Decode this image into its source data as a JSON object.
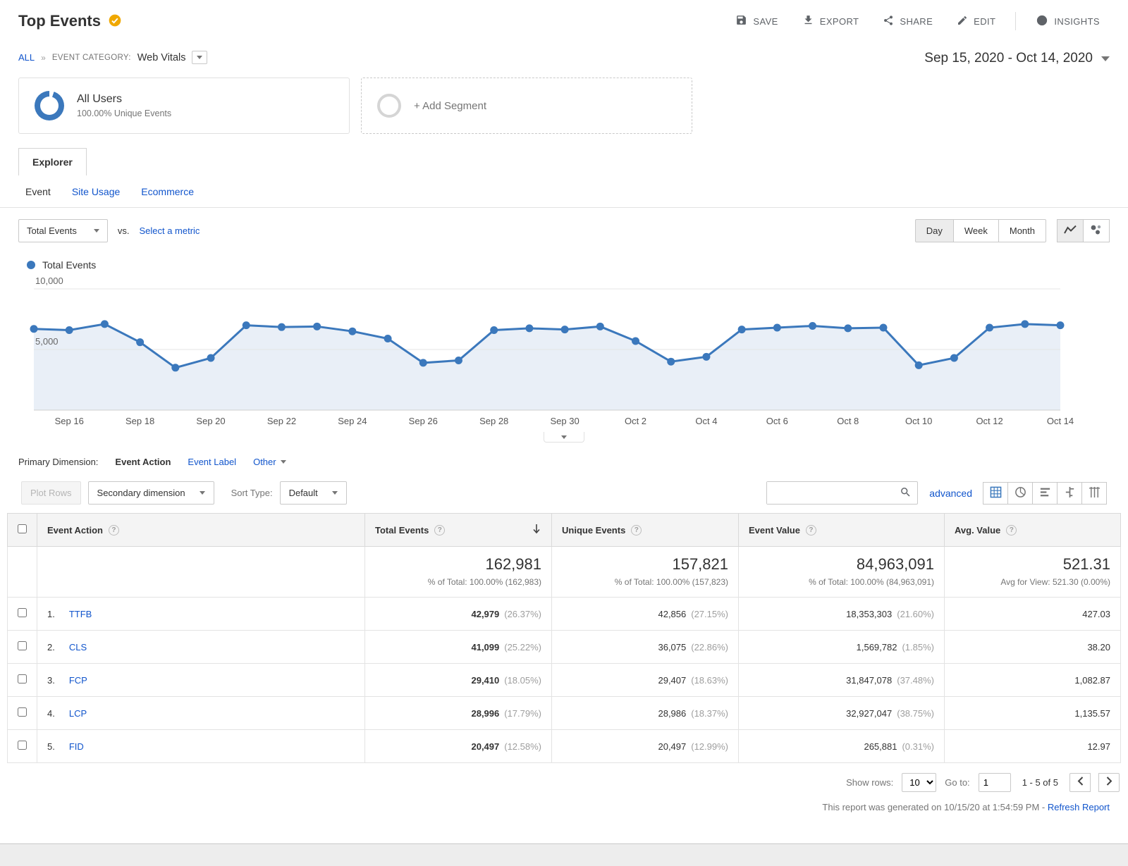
{
  "colors": {
    "accent_blue": "#3b78bc",
    "link_blue": "#1155cc",
    "badge_gold": "#f0a800"
  },
  "page": {
    "title": "Top Events"
  },
  "header": {
    "save": "SAVE",
    "export": "EXPORT",
    "share": "SHARE",
    "edit": "EDIT",
    "insights": "INSIGHTS"
  },
  "breadcrumb": {
    "all": "ALL",
    "separator": "»",
    "category_label": "EVENT CATEGORY:",
    "category_value": "Web Vitals"
  },
  "date_range": {
    "label": "Sep 15, 2020 - Oct 14, 2020"
  },
  "segments": {
    "all_users_title": "All Users",
    "all_users_subtitle": "100.00% Unique Events",
    "add_segment": "+ Add Segment"
  },
  "explorer": {
    "tab": "Explorer",
    "subtabs": [
      "Event",
      "Site Usage",
      "Ecommerce"
    ]
  },
  "metric_bar": {
    "metric": "Total Events",
    "vs": "vs.",
    "select_metric": "Select a metric",
    "granularity": [
      "Day",
      "Week",
      "Month"
    ],
    "active_granularity": "Day"
  },
  "legend": {
    "series": "Total Events"
  },
  "chart_data": {
    "type": "line",
    "title": "Total Events by day",
    "x": [
      "Sep 15",
      "Sep 16",
      "Sep 17",
      "Sep 18",
      "Sep 19",
      "Sep 20",
      "Sep 21",
      "Sep 22",
      "Sep 23",
      "Sep 24",
      "Sep 25",
      "Sep 26",
      "Sep 27",
      "Sep 28",
      "Sep 29",
      "Sep 30",
      "Oct 1",
      "Oct 2",
      "Oct 3",
      "Oct 4",
      "Oct 5",
      "Oct 6",
      "Oct 7",
      "Oct 8",
      "Oct 9",
      "Oct 10",
      "Oct 11",
      "Oct 12",
      "Oct 13",
      "Oct 14"
    ],
    "x_tick_labels": [
      "Sep 16",
      "Sep 18",
      "Sep 20",
      "Sep 22",
      "Sep 24",
      "Sep 26",
      "Sep 28",
      "Sep 30",
      "Oct 2",
      "Oct 4",
      "Oct 6",
      "Oct 8",
      "Oct 10",
      "Oct 12",
      "Oct 14"
    ],
    "series": [
      {
        "name": "Total Events",
        "color": "#3b78bc",
        "values": [
          6700,
          6600,
          7100,
          5600,
          3500,
          4300,
          7000,
          6850,
          6900,
          6500,
          5900,
          3900,
          4100,
          6600,
          6750,
          6650,
          6900,
          5700,
          4000,
          4400,
          6650,
          6800,
          6950,
          6750,
          6800,
          3700,
          4300,
          6800,
          7100,
          7000
        ]
      }
    ],
    "ylim": [
      0,
      10000
    ],
    "y_ticks": [
      5000,
      10000
    ],
    "y_tick_labels": [
      "5,000",
      "10,000"
    ],
    "grid": true,
    "legend_position": "top-left",
    "area_fill": "#e9eff7"
  },
  "dimension_bar": {
    "label": "Primary Dimension:",
    "options": [
      {
        "label": "Event Action",
        "active": true
      },
      {
        "label": "Event Label",
        "active": false
      },
      {
        "label": "Other",
        "active": false
      }
    ]
  },
  "toolbar": {
    "plot_rows": "Plot Rows",
    "secondary_dimension": "Secondary dimension",
    "sort_label": "Sort Type:",
    "sort_value": "Default",
    "advanced": "advanced"
  },
  "table": {
    "columns": [
      "Event Action",
      "Total Events",
      "Unique Events",
      "Event Value",
      "Avg. Value"
    ],
    "summary": {
      "total_events": "162,981",
      "total_events_sub": "% of Total: 100.00% (162,983)",
      "unique_events": "157,821",
      "unique_events_sub": "% of Total: 100.00% (157,823)",
      "event_value": "84,963,091",
      "event_value_sub": "% of Total: 100.00% (84,963,091)",
      "avg_value": "521.31",
      "avg_value_sub": "Avg for View: 521.30 (0.00%)"
    },
    "rows": [
      {
        "num": "1.",
        "name": "TTFB",
        "total": "42,979",
        "total_pct": "(26.37%)",
        "unique": "42,856",
        "unique_pct": "(27.15%)",
        "value": "18,353,303",
        "value_pct": "(21.60%)",
        "avg": "427.03"
      },
      {
        "num": "2.",
        "name": "CLS",
        "total": "41,099",
        "total_pct": "(25.22%)",
        "unique": "36,075",
        "unique_pct": "(22.86%)",
        "value": "1,569,782",
        "value_pct": "(1.85%)",
        "avg": "38.20"
      },
      {
        "num": "3.",
        "name": "FCP",
        "total": "29,410",
        "total_pct": "(18.05%)",
        "unique": "29,407",
        "unique_pct": "(18.63%)",
        "value": "31,847,078",
        "value_pct": "(37.48%)",
        "avg": "1,082.87"
      },
      {
        "num": "4.",
        "name": "LCP",
        "total": "28,996",
        "total_pct": "(17.79%)",
        "unique": "28,986",
        "unique_pct": "(18.37%)",
        "value": "32,927,047",
        "value_pct": "(38.75%)",
        "avg": "1,135.57"
      },
      {
        "num": "5.",
        "name": "FID",
        "total": "20,497",
        "total_pct": "(12.58%)",
        "unique": "20,497",
        "unique_pct": "(12.99%)",
        "value": "265,881",
        "value_pct": "(0.31%)",
        "avg": "12.97"
      }
    ]
  },
  "pagination": {
    "show_rows_label": "Show rows:",
    "show_rows_value": "10",
    "goto_label": "Go to:",
    "goto_value": "1",
    "range": "1 - 5 of 5"
  },
  "footer_note": {
    "text": "This report was generated on 10/15/20 at 1:54:59 PM - ",
    "link": "Refresh Report"
  }
}
